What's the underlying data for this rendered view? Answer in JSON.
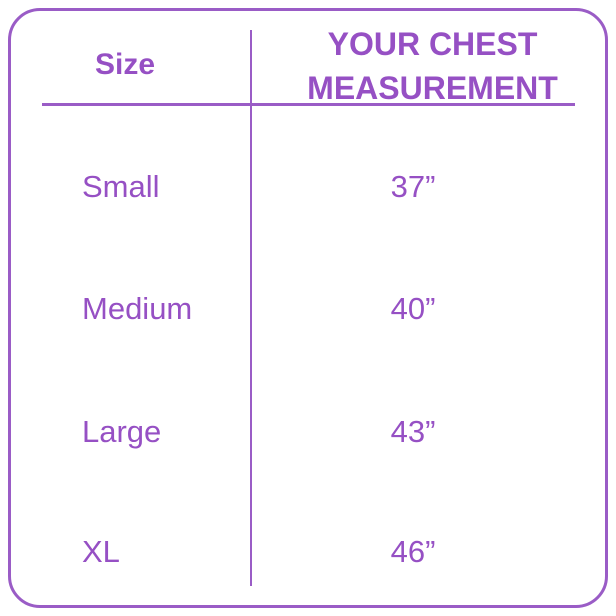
{
  "table": {
    "headers": [
      "Size",
      "YOUR CHEST MEASUREMENT"
    ],
    "rows": [
      [
        "Small",
        "37”"
      ],
      [
        "Medium",
        "40”"
      ],
      [
        "Large",
        "43”"
      ],
      [
        "XL",
        "46”"
      ]
    ]
  }
}
